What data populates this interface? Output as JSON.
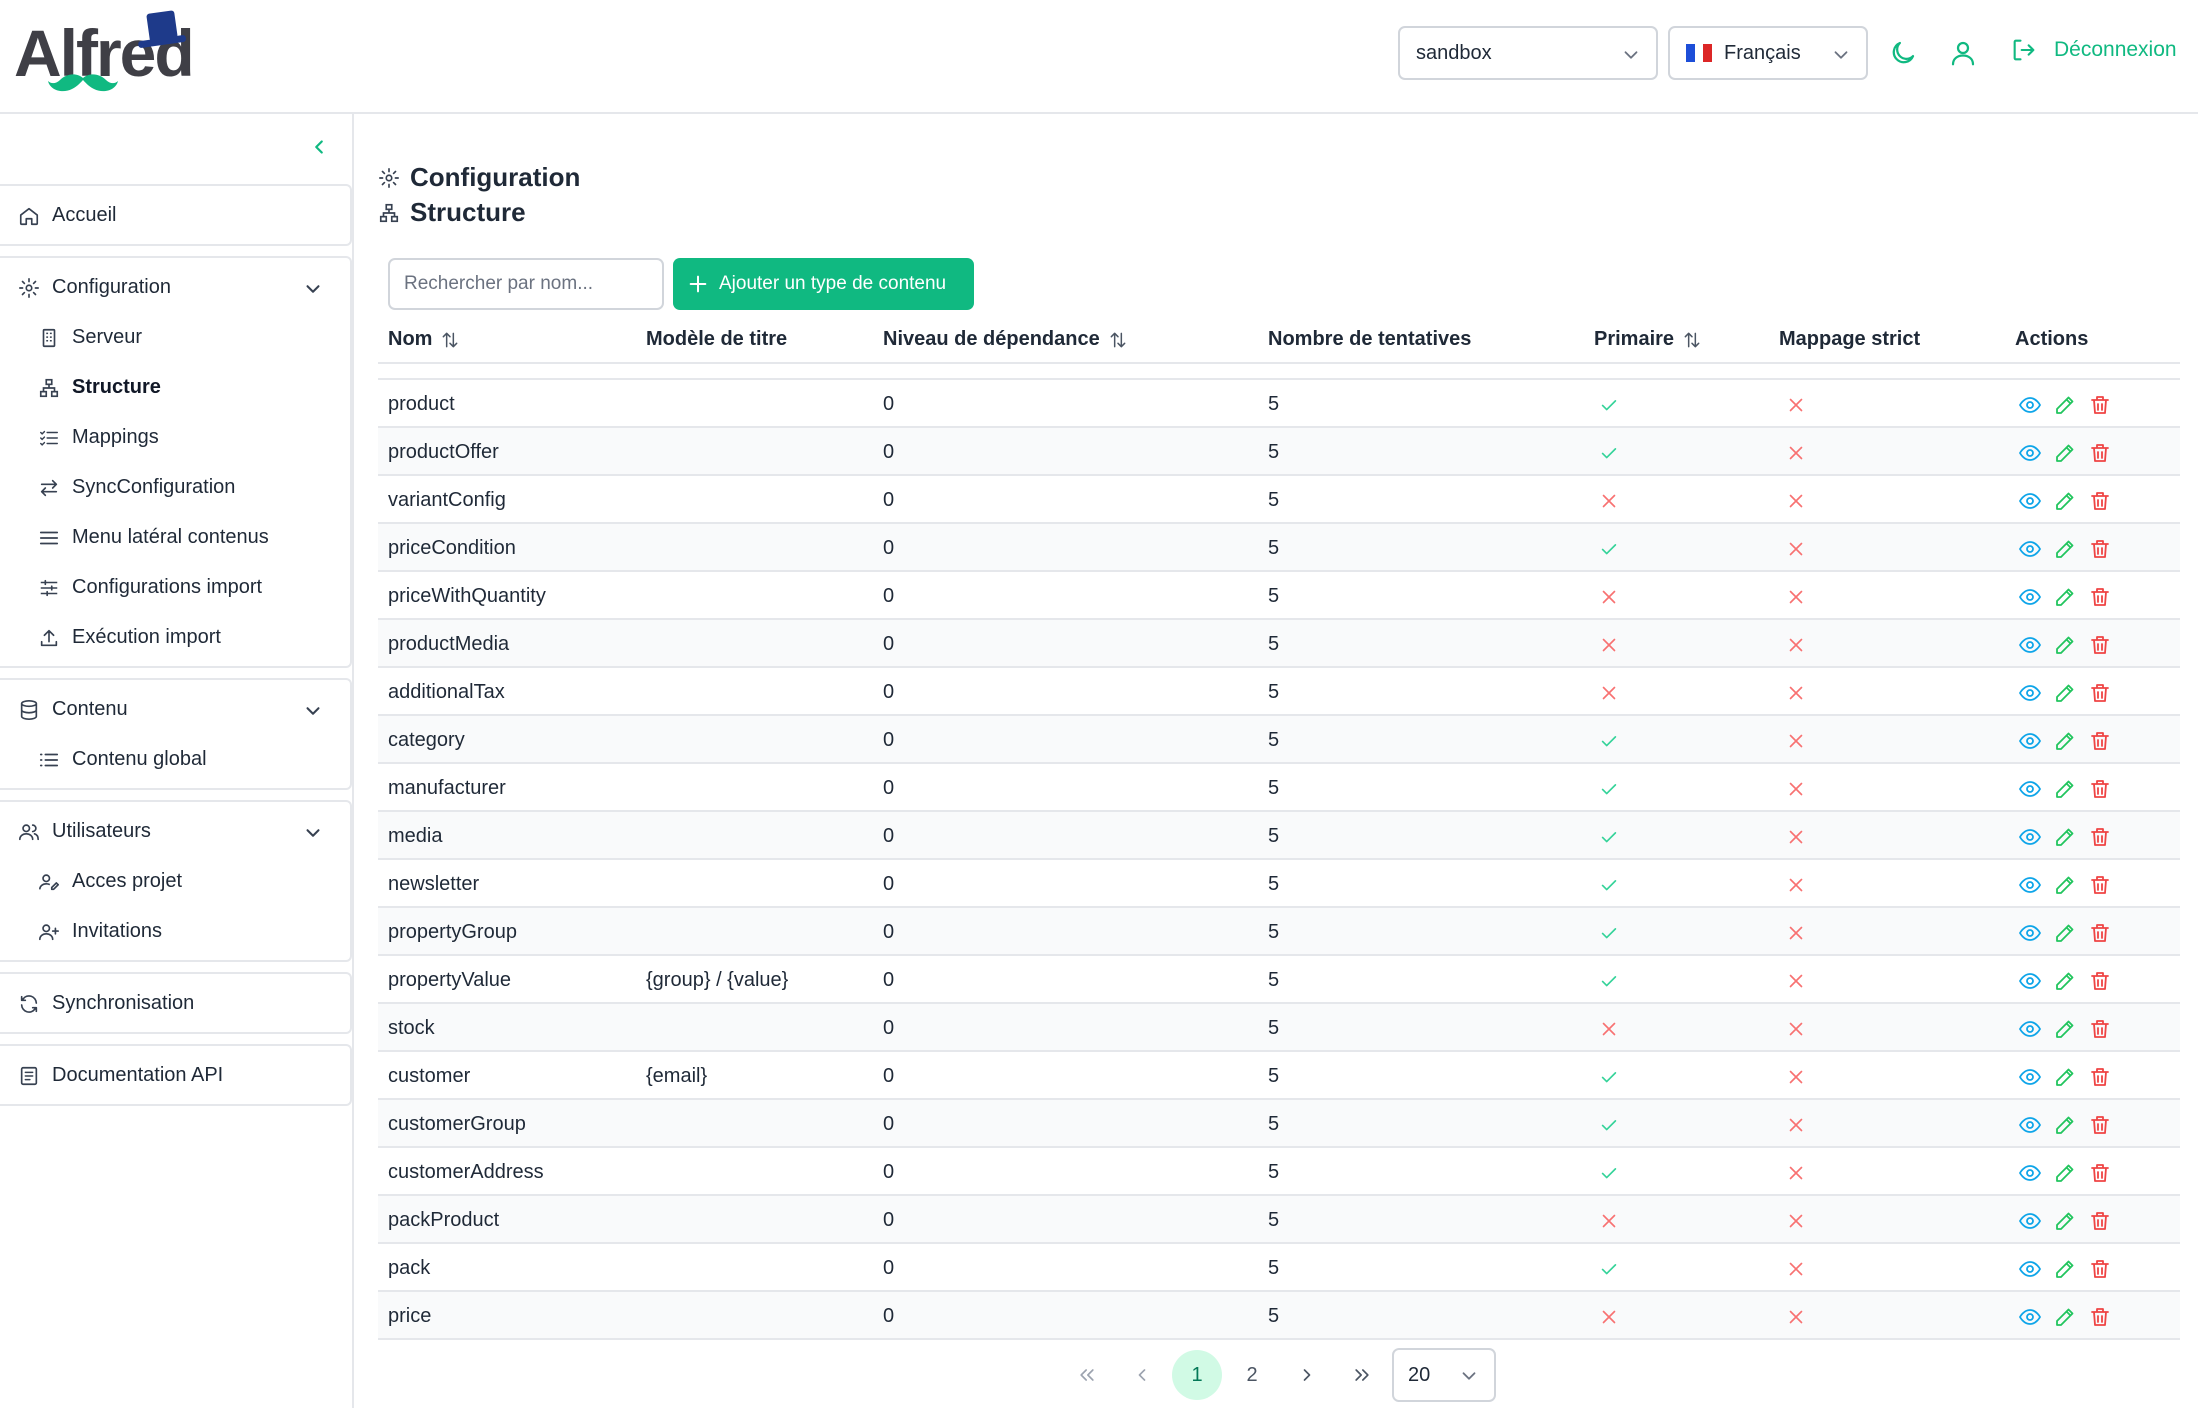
{
  "header": {
    "logo_text": "Alfred",
    "environment": "sandbox",
    "language": "Français",
    "logout_label": "Déconnexion",
    "accent_color": "#10b981"
  },
  "sidebar": {
    "accueil": "Accueil",
    "configuration": {
      "label": "Configuration",
      "items": [
        "Serveur",
        "Structure",
        "Mappings",
        "SyncConfiguration",
        "Menu latéral contenus",
        "Configurations import",
        "Exécution import"
      ]
    },
    "contenu": {
      "label": "Contenu",
      "items": [
        "Contenu global"
      ]
    },
    "utilisateurs": {
      "label": "Utilisateurs",
      "items": [
        "Acces projet",
        "Invitations"
      ]
    },
    "synchronisation": "Synchronisation",
    "documentation": "Documentation API"
  },
  "page": {
    "breadcrumb_parent": "Configuration",
    "title": "Structure",
    "search_placeholder": "Rechercher par nom...",
    "add_button": "Ajouter un type de contenu"
  },
  "table": {
    "columns": [
      "Nom",
      "Modèle de titre",
      "Niveau de dépendance",
      "Nombre de tentatives",
      "Primaire",
      "Mappage strict",
      "Actions"
    ],
    "rows": [
      {
        "name": "product",
        "title_model": "",
        "dependency": "0",
        "attempts": "5",
        "primary": true,
        "strict": false
      },
      {
        "name": "productOffer",
        "title_model": "",
        "dependency": "0",
        "attempts": "5",
        "primary": true,
        "strict": false
      },
      {
        "name": "variantConfig",
        "title_model": "",
        "dependency": "0",
        "attempts": "5",
        "primary": false,
        "strict": false
      },
      {
        "name": "priceCondition",
        "title_model": "",
        "dependency": "0",
        "attempts": "5",
        "primary": true,
        "strict": false
      },
      {
        "name": "priceWithQuantity",
        "title_model": "",
        "dependency": "0",
        "attempts": "5",
        "primary": false,
        "strict": false
      },
      {
        "name": "productMedia",
        "title_model": "",
        "dependency": "0",
        "attempts": "5",
        "primary": false,
        "strict": false
      },
      {
        "name": "additionalTax",
        "title_model": "",
        "dependency": "0",
        "attempts": "5",
        "primary": false,
        "strict": false
      },
      {
        "name": "category",
        "title_model": "",
        "dependency": "0",
        "attempts": "5",
        "primary": true,
        "strict": false
      },
      {
        "name": "manufacturer",
        "title_model": "",
        "dependency": "0",
        "attempts": "5",
        "primary": true,
        "strict": false
      },
      {
        "name": "media",
        "title_model": "",
        "dependency": "0",
        "attempts": "5",
        "primary": true,
        "strict": false
      },
      {
        "name": "newsletter",
        "title_model": "",
        "dependency": "0",
        "attempts": "5",
        "primary": true,
        "strict": false
      },
      {
        "name": "propertyGroup",
        "title_model": "",
        "dependency": "0",
        "attempts": "5",
        "primary": true,
        "strict": false
      },
      {
        "name": "propertyValue",
        "title_model": "{group} / {value}",
        "dependency": "0",
        "attempts": "5",
        "primary": true,
        "strict": false
      },
      {
        "name": "stock",
        "title_model": "",
        "dependency": "0",
        "attempts": "5",
        "primary": false,
        "strict": false
      },
      {
        "name": "customer",
        "title_model": "{email}",
        "dependency": "0",
        "attempts": "5",
        "primary": true,
        "strict": false
      },
      {
        "name": "customerGroup",
        "title_model": "",
        "dependency": "0",
        "attempts": "5",
        "primary": true,
        "strict": false
      },
      {
        "name": "customerAddress",
        "title_model": "",
        "dependency": "0",
        "attempts": "5",
        "primary": true,
        "strict": false
      },
      {
        "name": "packProduct",
        "title_model": "",
        "dependency": "0",
        "attempts": "5",
        "primary": false,
        "strict": false
      },
      {
        "name": "pack",
        "title_model": "",
        "dependency": "0",
        "attempts": "5",
        "primary": true,
        "strict": false
      },
      {
        "name": "price",
        "title_model": "",
        "dependency": "0",
        "attempts": "5",
        "primary": false,
        "strict": false
      }
    ]
  },
  "pagination": {
    "pages": [
      "1",
      "2"
    ],
    "current": "1",
    "per_page": "20"
  }
}
